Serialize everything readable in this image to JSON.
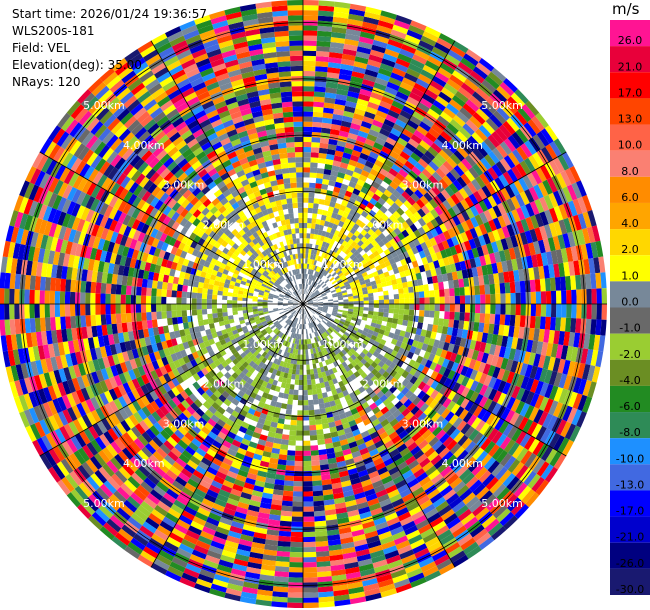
{
  "header": {
    "start_time": "Start time: 2026/01/24 19:36:57",
    "instrument": "WLS200s-181",
    "field": "Field: VEL",
    "elevation": "Elevation(deg): 35.00",
    "nrays": "NRays: 120"
  },
  "colorbar": {
    "unit": "m/s",
    "levels": [
      {
        "label": "26.0",
        "color": "#ff1493"
      },
      {
        "label": "21.0",
        "color": "#e8003a"
      },
      {
        "label": "17.0",
        "color": "#ff0000"
      },
      {
        "label": "13.0",
        "color": "#ff4500"
      },
      {
        "label": "10.0",
        "color": "#ff6347"
      },
      {
        "label": "8.0",
        "color": "#fa8072"
      },
      {
        "label": "6.0",
        "color": "#ff8c00"
      },
      {
        "label": "4.0",
        "color": "#ffa500"
      },
      {
        "label": "2.0",
        "color": "#ffd700"
      },
      {
        "label": "1.0",
        "color": "#ffff00"
      },
      {
        "label": "0.0",
        "color": "#778899"
      },
      {
        "label": "-1.0",
        "color": "#696969"
      },
      {
        "label": "-2.0",
        "color": "#9acd32"
      },
      {
        "label": "-4.0",
        "color": "#6b8e23"
      },
      {
        "label": "-6.0",
        "color": "#228b22"
      },
      {
        "label": "-8.0",
        "color": "#2e8b57"
      },
      {
        "label": "-10.0",
        "color": "#1e90ff"
      },
      {
        "label": "-13.0",
        "color": "#4169e1"
      },
      {
        "label": "-17.0",
        "color": "#0000ff"
      },
      {
        "label": "-21.0",
        "color": "#0000cd"
      },
      {
        "label": "-26.0",
        "color": "#000080"
      },
      {
        "label": "-30.0",
        "color": "#191970"
      }
    ]
  },
  "chart_data": {
    "type": "heatmap",
    "projection": "polar-ppi",
    "nrays": 120,
    "range_rings_km": [
      "1.00km",
      "2.00km",
      "3.00km",
      "4.00km",
      "5.00km"
    ],
    "max_range_km": 5.4,
    "spokes_deg": 30,
    "field": "VEL",
    "units": "m/s"
  }
}
